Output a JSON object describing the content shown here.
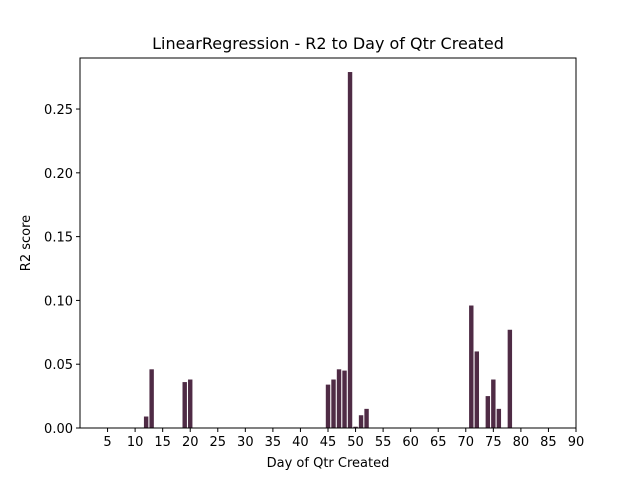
{
  "chart_data": {
    "type": "bar",
    "title": "LinearRegression - R2 to Day of Qtr Created",
    "xlabel": "Day of Qtr Created",
    "ylabel": "R2 score",
    "xlim": [
      0,
      90
    ],
    "ylim": [
      0.0,
      0.29
    ],
    "xticks": [
      5,
      10,
      15,
      20,
      25,
      30,
      35,
      40,
      45,
      50,
      55,
      60,
      65,
      70,
      75,
      80,
      85,
      90
    ],
    "yticks": [
      0.0,
      0.05,
      0.1,
      0.15,
      0.2,
      0.25
    ],
    "ytick_labels": [
      "0.00",
      "0.05",
      "0.10",
      "0.15",
      "0.20",
      "0.25"
    ],
    "bar_color": "#4f2b45",
    "grid": false,
    "x": [
      12,
      13,
      19,
      20,
      45,
      46,
      47,
      48,
      49,
      50,
      51,
      52,
      71,
      72,
      74,
      75,
      76,
      78
    ],
    "values": [
      0.009,
      0.046,
      0.036,
      0.038,
      0.034,
      0.038,
      0.046,
      0.045,
      0.279,
      0.001,
      0.01,
      0.015,
      0.096,
      0.06,
      0.025,
      0.038,
      0.015,
      0.077
    ]
  }
}
